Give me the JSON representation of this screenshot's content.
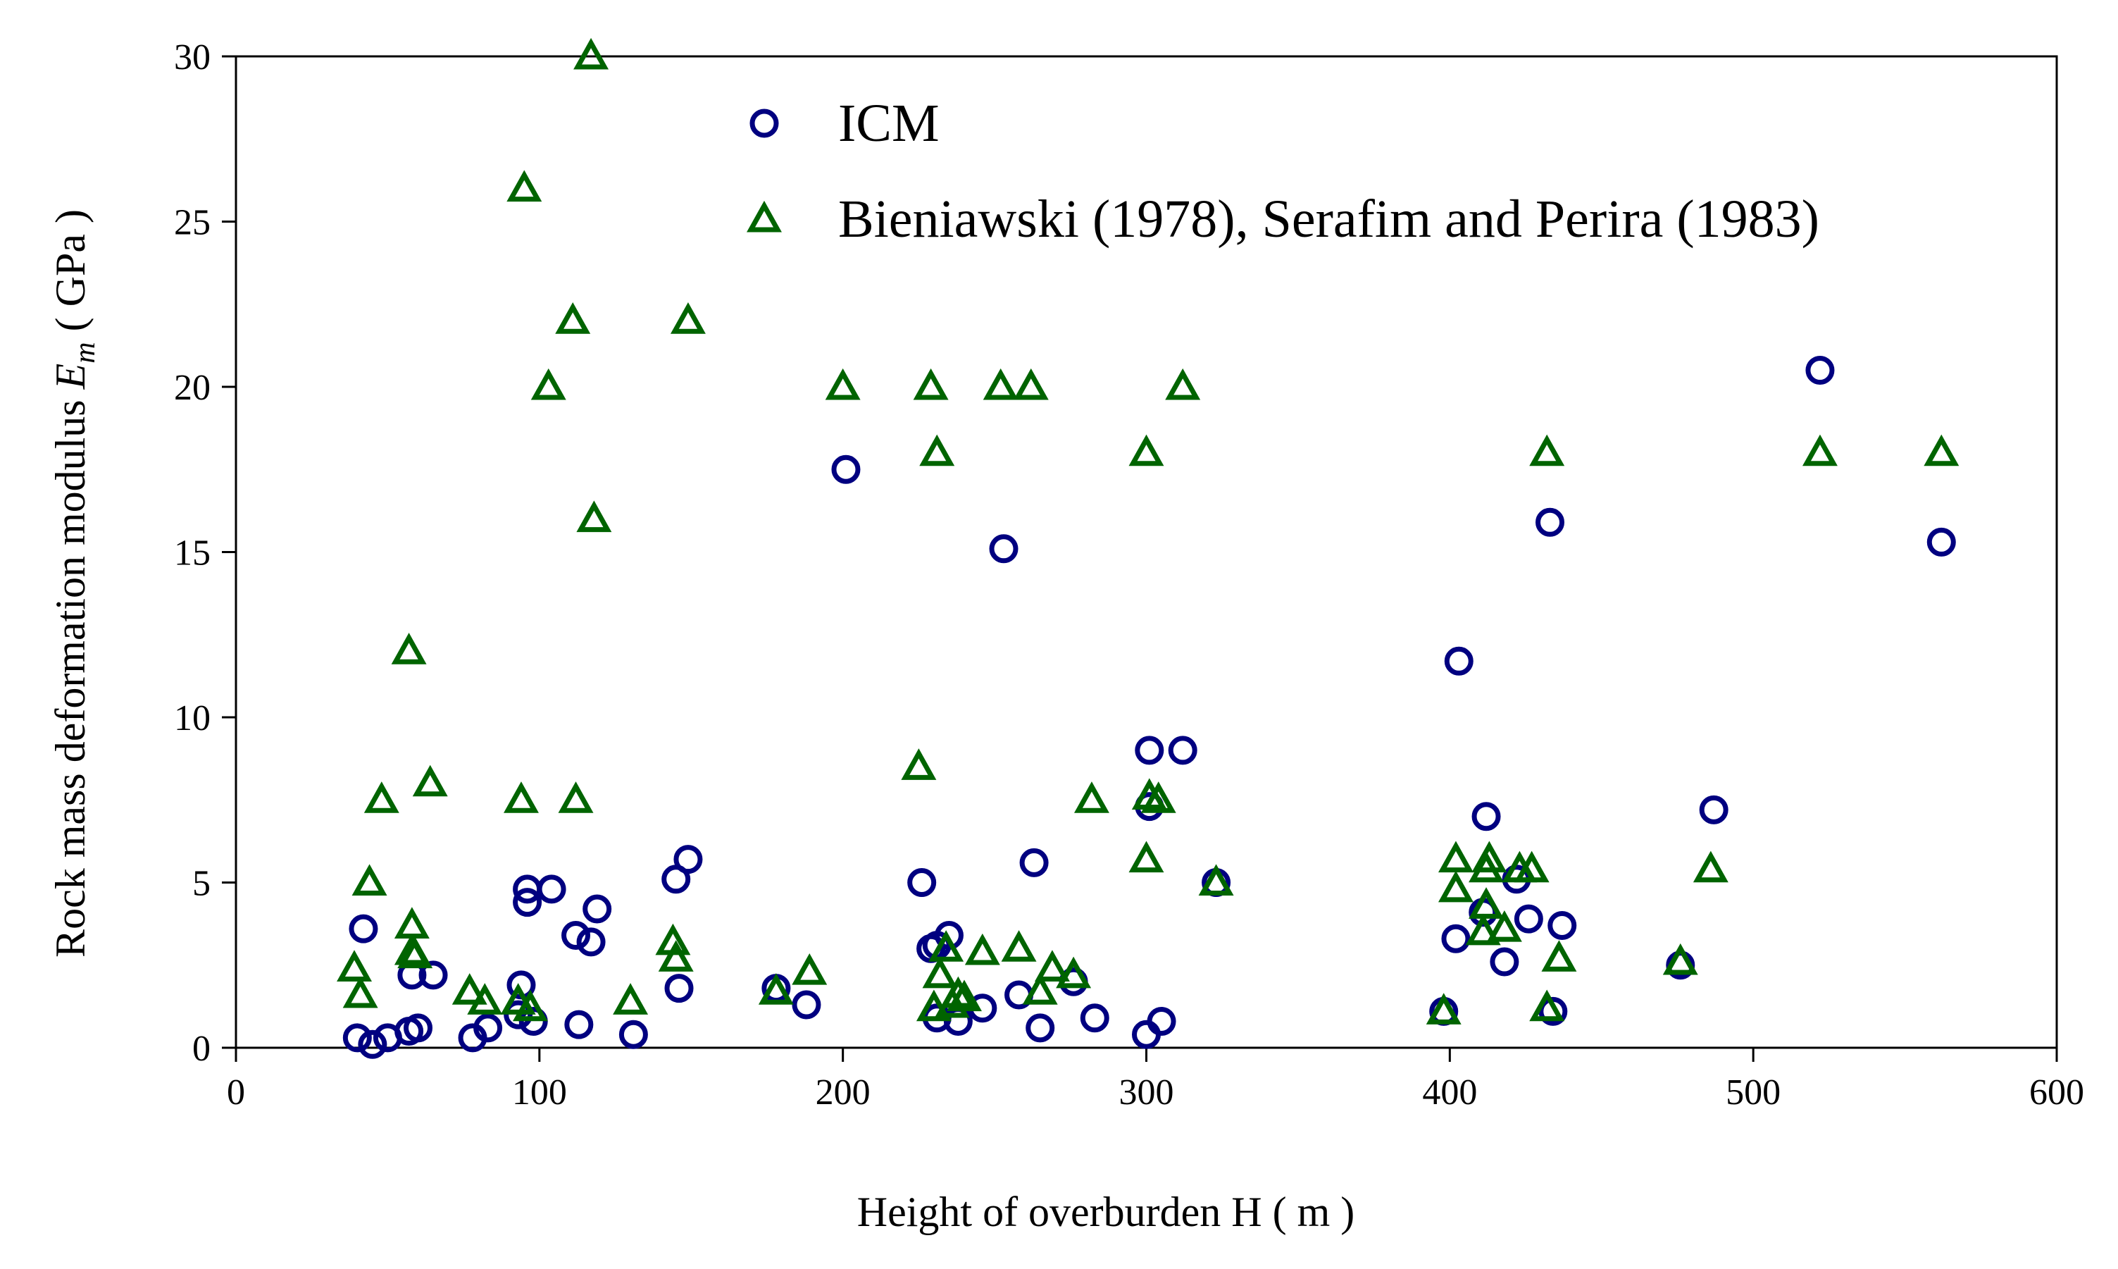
{
  "chart_data": {
    "type": "scatter",
    "title": "",
    "xlabel": "Height of overburden  H  ( m )",
    "ylabel_prefix": "Rock mass deformation modulus  ",
    "ylabel_symbol": "E",
    "ylabel_subscript": "m",
    "ylabel_suffix": "  ( GPa )",
    "xlim": [
      0,
      600
    ],
    "ylim": [
      0,
      30
    ],
    "x_ticks": [
      0,
      100,
      200,
      300,
      400,
      500,
      600
    ],
    "y_ticks": [
      0,
      5,
      10,
      15,
      20,
      25,
      30
    ],
    "grid": false,
    "legend_position": "top-center",
    "series": [
      {
        "name": "ICM",
        "marker": "circle",
        "color": "#000080",
        "points": [
          [
            40,
            0.3
          ],
          [
            42,
            3.6
          ],
          [
            45,
            0.1
          ],
          [
            50,
            0.3
          ],
          [
            57,
            0.5
          ],
          [
            58,
            2.2
          ],
          [
            60,
            0.6
          ],
          [
            65,
            2.2
          ],
          [
            78,
            0.3
          ],
          [
            83,
            0.6
          ],
          [
            93,
            1.0
          ],
          [
            94,
            1.9
          ],
          [
            96,
            4.4
          ],
          [
            96,
            4.8
          ],
          [
            98,
            0.8
          ],
          [
            104,
            4.8
          ],
          [
            112,
            3.4
          ],
          [
            113,
            0.7
          ],
          [
            117,
            3.2
          ],
          [
            119,
            4.2
          ],
          [
            131,
            0.4
          ],
          [
            145,
            5.1
          ],
          [
            146,
            1.8
          ],
          [
            149,
            5.7
          ],
          [
            178,
            1.8
          ],
          [
            188,
            1.3
          ],
          [
            201,
            17.5
          ],
          [
            226,
            5.0
          ],
          [
            229,
            3.0
          ],
          [
            231,
            3.1
          ],
          [
            231,
            0.9
          ],
          [
            235,
            3.4
          ],
          [
            238,
            0.8
          ],
          [
            246,
            1.2
          ],
          [
            253,
            15.1
          ],
          [
            258,
            1.6
          ],
          [
            263,
            5.6
          ],
          [
            265,
            0.6
          ],
          [
            276,
            2.0
          ],
          [
            283,
            0.9
          ],
          [
            300,
            0.4
          ],
          [
            301,
            7.3
          ],
          [
            301,
            9.0
          ],
          [
            305,
            0.8
          ],
          [
            312,
            9.0
          ],
          [
            323,
            5.0
          ],
          [
            398,
            1.1
          ],
          [
            402,
            3.3
          ],
          [
            403,
            11.7
          ],
          [
            411,
            4.1
          ],
          [
            412,
            7.0
          ],
          [
            418,
            2.6
          ],
          [
            422,
            5.1
          ],
          [
            426,
            3.9
          ],
          [
            433,
            15.9
          ],
          [
            434,
            1.1
          ],
          [
            437,
            3.7
          ],
          [
            476,
            2.5
          ],
          [
            487,
            7.2
          ],
          [
            522,
            20.5
          ],
          [
            562,
            15.3
          ]
        ]
      },
      {
        "name": "Bieniawski (1978), Serafim and Perira (1983)",
        "marker": "triangle",
        "color": "#006400",
        "points": [
          [
            39,
            2.4
          ],
          [
            41,
            1.6
          ],
          [
            44,
            5.0
          ],
          [
            48,
            7.5
          ],
          [
            57,
            12.0
          ],
          [
            58,
            3.7
          ],
          [
            58,
            2.9
          ],
          [
            59,
            2.8
          ],
          [
            64,
            8.0
          ],
          [
            77,
            1.7
          ],
          [
            82,
            1.4
          ],
          [
            93,
            1.4
          ],
          [
            94,
            7.5
          ],
          [
            95,
            26.0
          ],
          [
            97,
            1.2
          ],
          [
            103,
            20.0
          ],
          [
            111,
            22.0
          ],
          [
            112,
            7.5
          ],
          [
            117,
            30.0
          ],
          [
            118,
            16.0
          ],
          [
            130,
            1.4
          ],
          [
            144,
            3.2
          ],
          [
            145,
            2.7
          ],
          [
            149,
            22.0
          ],
          [
            178,
            1.7
          ],
          [
            189,
            2.3
          ],
          [
            200,
            20.0
          ],
          [
            225,
            8.5
          ],
          [
            229,
            20.0
          ],
          [
            231,
            18.0
          ],
          [
            230,
            1.2
          ],
          [
            232,
            2.2
          ],
          [
            234,
            3.0
          ],
          [
            236,
            1.3
          ],
          [
            238,
            1.6
          ],
          [
            240,
            1.5
          ],
          [
            246,
            2.9
          ],
          [
            252,
            20.0
          ],
          [
            258,
            3.0
          ],
          [
            262,
            20.0
          ],
          [
            265,
            1.7
          ],
          [
            269,
            2.4
          ],
          [
            276,
            2.2
          ],
          [
            282,
            7.5
          ],
          [
            300,
            18.0
          ],
          [
            300,
            5.7
          ],
          [
            301,
            7.6
          ],
          [
            304,
            7.5
          ],
          [
            312,
            20.0
          ],
          [
            323,
            5.0
          ],
          [
            398,
            1.1
          ],
          [
            402,
            5.7
          ],
          [
            402,
            4.8
          ],
          [
            411,
            3.5
          ],
          [
            412,
            5.4
          ],
          [
            412,
            4.3
          ],
          [
            413,
            5.7
          ],
          [
            418,
            3.6
          ],
          [
            423,
            5.4
          ],
          [
            427,
            5.4
          ],
          [
            432,
            18.0
          ],
          [
            432,
            1.2
          ],
          [
            436,
            2.7
          ],
          [
            476,
            2.6
          ],
          [
            486,
            5.4
          ],
          [
            522,
            18.0
          ],
          [
            562,
            18.0
          ]
        ]
      }
    ]
  }
}
